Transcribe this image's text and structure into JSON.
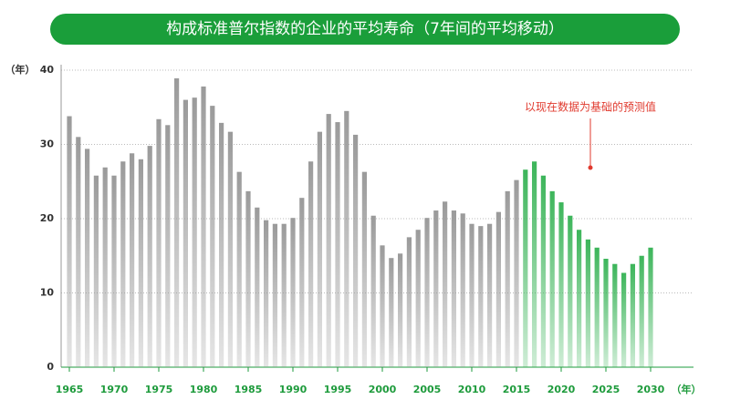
{
  "chart_data": {
    "type": "bar",
    "title": "构成标准普尔指数的企业的平均寿命（7年间的平均移动）",
    "y_unit": "（年）",
    "x_unit": "（年）",
    "annotation": "以现在数据为基础的预测值",
    "x": [
      1965,
      1966,
      1967,
      1968,
      1969,
      1970,
      1971,
      1972,
      1973,
      1974,
      1975,
      1976,
      1977,
      1978,
      1979,
      1980,
      1981,
      1982,
      1983,
      1984,
      1985,
      1986,
      1987,
      1988,
      1989,
      1990,
      1991,
      1992,
      1993,
      1994,
      1995,
      1996,
      1997,
      1998,
      1999,
      2000,
      2001,
      2002,
      2003,
      2004,
      2005,
      2006,
      2007,
      2008,
      2009,
      2010,
      2011,
      2012,
      2013,
      2014,
      2015,
      2016,
      2017,
      2018,
      2019,
      2020,
      2021,
      2022,
      2023,
      2024,
      2025,
      2026,
      2027,
      2028,
      2029,
      2030
    ],
    "series": [
      {
        "color": "#9a9a9a",
        "values": [
          33.8,
          31.0,
          29.4,
          25.8,
          26.9,
          25.8,
          27.7,
          28.8,
          28.0,
          29.8,
          33.4,
          32.6,
          38.9,
          36.0,
          36.3,
          37.8,
          35.2,
          32.9,
          31.7,
          26.3,
          23.7,
          21.5,
          19.8,
          19.3,
          19.3,
          20.1,
          22.8,
          27.7,
          31.7,
          34.1,
          33.0,
          34.5,
          31.3,
          26.3,
          20.4,
          16.4,
          14.7,
          15.3,
          17.5,
          18.5,
          20.1,
          21.1,
          22.3,
          21.1,
          20.7,
          19.3,
          19.0,
          19.3,
          20.9,
          23.7,
          25.2,
          null,
          null,
          null,
          null,
          null,
          null,
          null,
          null,
          null,
          null,
          null,
          null,
          null,
          null,
          null
        ]
      },
      {
        "color": "#3cb55a",
        "values": [
          null,
          null,
          null,
          null,
          null,
          null,
          null,
          null,
          null,
          null,
          null,
          null,
          null,
          null,
          null,
          null,
          null,
          null,
          null,
          null,
          null,
          null,
          null,
          null,
          null,
          null,
          null,
          null,
          null,
          null,
          null,
          null,
          null,
          null,
          null,
          null,
          null,
          null,
          null,
          null,
          null,
          null,
          null,
          null,
          null,
          null,
          null,
          null,
          null,
          null,
          null,
          26.6,
          27.7,
          25.8,
          23.7,
          22.2,
          20.4,
          18.5,
          17.2,
          16.1,
          14.6,
          13.9,
          12.7,
          13.9,
          15.0,
          16.1
        ]
      }
    ],
    "xlim": [
      1964,
      2031
    ],
    "xticks": [
      1965,
      1970,
      1975,
      1980,
      1985,
      1990,
      1995,
      2000,
      2005,
      2010,
      2015,
      2020,
      2025,
      2030
    ],
    "ylim": [
      0,
      40
    ],
    "yticks": [
      0,
      10,
      20,
      30,
      40
    ],
    "grid": true,
    "annotation_color": "#e03a2e"
  }
}
